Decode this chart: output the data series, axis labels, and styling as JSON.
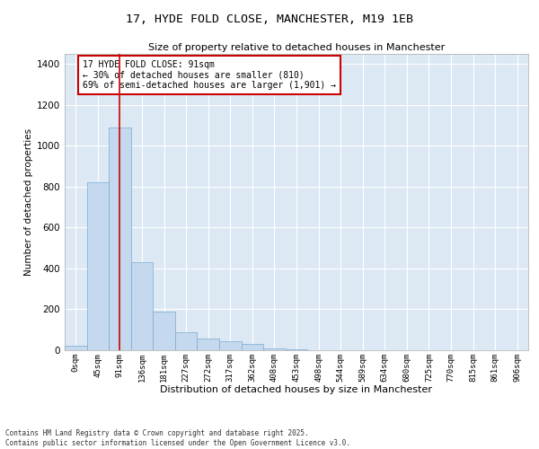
{
  "title_line1": "17, HYDE FOLD CLOSE, MANCHESTER, M19 1EB",
  "title_line2": "Size of property relative to detached houses in Manchester",
  "xlabel": "Distribution of detached houses by size in Manchester",
  "ylabel": "Number of detached properties",
  "bar_color": "#c5d9ee",
  "bar_edge_color": "#7aaad0",
  "background_color": "#dce9f5",
  "grid_color": "#ffffff",
  "annotation_text": "17 HYDE FOLD CLOSE: 91sqm\n← 30% of detached houses are smaller (810)\n69% of semi-detached houses are larger (1,901) →",
  "marker_color": "#cc0000",
  "categories": [
    "0sqm",
    "45sqm",
    "91sqm",
    "136sqm",
    "181sqm",
    "227sqm",
    "272sqm",
    "317sqm",
    "362sqm",
    "408sqm",
    "453sqm",
    "498sqm",
    "544sqm",
    "589sqm",
    "634sqm",
    "680sqm",
    "725sqm",
    "770sqm",
    "815sqm",
    "861sqm",
    "906sqm"
  ],
  "values": [
    20,
    820,
    1090,
    430,
    190,
    90,
    55,
    45,
    30,
    10,
    5,
    2,
    1,
    1,
    0,
    0,
    0,
    0,
    0,
    0,
    0
  ],
  "ylim": [
    0,
    1450
  ],
  "yticks": [
    0,
    200,
    400,
    600,
    800,
    1000,
    1200,
    1400
  ],
  "figsize": [
    6.0,
    5.0
  ],
  "dpi": 100,
  "footnote": "Contains HM Land Registry data © Crown copyright and database right 2025.\nContains public sector information licensed under the Open Government Licence v3.0."
}
